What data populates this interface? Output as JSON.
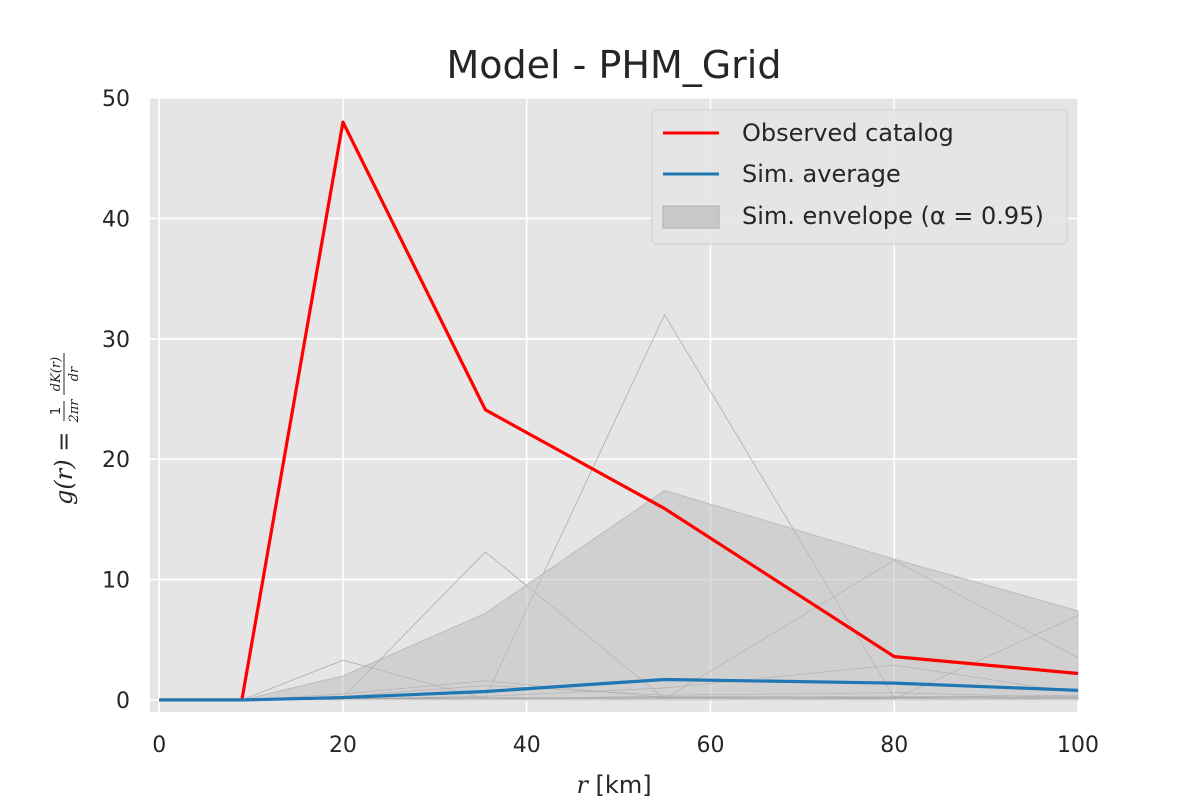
{
  "chart_data": {
    "type": "line",
    "title": "Model - PHM_Grid",
    "xlabel": "r  [km]",
    "ylabel": "g(r) = (1/2πr) dK(r)/dr",
    "xlim": [
      -1,
      100
    ],
    "ylim": [
      -1,
      50
    ],
    "grid": true,
    "legend": "top-right",
    "xticks": [
      0,
      20,
      40,
      60,
      80,
      100
    ],
    "yticks": [
      0,
      10,
      20,
      30,
      40,
      50
    ],
    "x": [
      0,
      9,
      20,
      35.5,
      55,
      80,
      100
    ],
    "series": [
      {
        "name": "Observed catalog",
        "color": "#ff0000",
        "values": [
          0,
          0,
          48,
          24.1,
          15.9,
          3.6,
          2.2
        ]
      },
      {
        "name": "Sim. average",
        "color": "#1f77b4",
        "values": [
          0,
          0,
          0.2,
          0.7,
          1.7,
          1.4,
          0.8
        ]
      }
    ],
    "envelope": {
      "name": "Sim. envelope (α = 0.95)",
      "color": "#c0c0c0",
      "lower": [
        0,
        0,
        0,
        0,
        0,
        0,
        0
      ],
      "upper": [
        0,
        0,
        2.0,
        7.2,
        17.4,
        11.7,
        7.4
      ]
    },
    "simulations": [
      [
        0,
        0,
        3.3,
        0.1,
        0.2,
        0.1,
        0.3
      ],
      [
        0,
        0,
        0.2,
        12.3,
        0.1,
        0.2,
        0.1
      ],
      [
        0,
        0,
        0.1,
        0.2,
        32.0,
        0.2,
        0.4
      ],
      [
        0,
        0,
        0.1,
        0.2,
        0.1,
        11.6,
        3.5
      ],
      [
        0,
        0,
        0.1,
        0.1,
        0.2,
        0.1,
        7.0
      ],
      [
        0,
        0,
        0.5,
        1.6,
        0.2,
        0.3,
        0.2
      ],
      [
        0,
        0,
        0.1,
        0.3,
        1.0,
        2.9,
        0.6
      ],
      [
        0,
        0,
        0.3,
        1.2,
        0.4,
        0.6,
        0.2
      ],
      [
        0,
        0,
        0.1,
        0.1,
        0.3,
        0.2,
        0.1
      ]
    ]
  }
}
